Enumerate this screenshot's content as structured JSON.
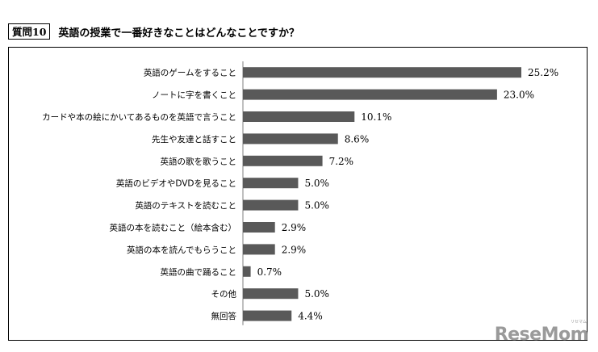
{
  "header": {
    "tag": "質問10",
    "title": "英語の授業で一番好きなことはどんなことですか？"
  },
  "chart_data": {
    "type": "bar",
    "orientation": "horizontal",
    "categories": [
      "英語のゲームをすること",
      "ノートに字を書くこと",
      "カードや本の絵にかいてあるものを英語で言うこと",
      "先生や友達と話すこと",
      "英語の歌を歌うこと",
      "英語のビデオやDVDを見ること",
      "英語のテキストを読むこと",
      "英語の本を読むこと（絵本含む）",
      "英語の本を読んでもらうこと",
      "英語の曲で踊ること",
      "その他",
      "無回答"
    ],
    "values": [
      25.2,
      23.0,
      10.1,
      8.6,
      7.2,
      5.0,
      5.0,
      2.9,
      2.9,
      0.7,
      5.0,
      4.4
    ],
    "value_labels": [
      "25.2%",
      "23.0%",
      "10.1%",
      "8.6%",
      "7.2%",
      "5.0%",
      "5.0%",
      "2.9%",
      "2.9%",
      "0.7%",
      "5.0%",
      "4.4%"
    ],
    "unit": "%",
    "bar_color": "#595959",
    "xlim": [
      0,
      26
    ]
  },
  "logo": {
    "text": "ReseMom",
    "small_text": "リセマム"
  }
}
